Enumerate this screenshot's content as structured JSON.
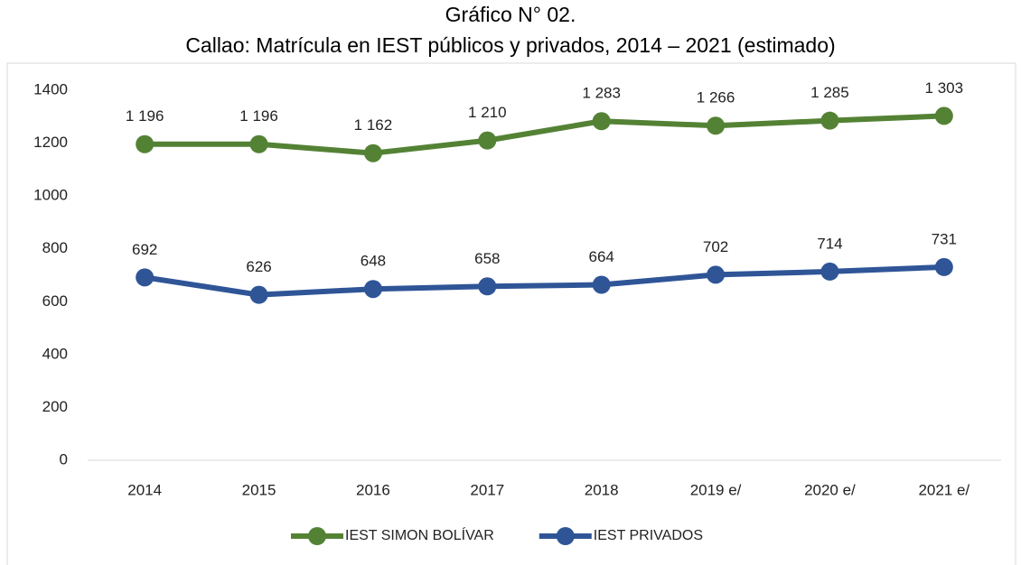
{
  "chart_data": {
    "type": "line",
    "title": "Gráfico N° 02.",
    "subtitle": "Callao: Matrícula en IEST públicos y privados, 2014 – 2021 (estimado)",
    "categories": [
      "2014",
      "2015",
      "2016",
      "2017",
      "2018",
      "2019 e/",
      "2020 e/",
      "2021 e/"
    ],
    "series": [
      {
        "name": "IEST SIMON BOLÍVAR",
        "color": "#548235",
        "values": [
          1196,
          1196,
          1162,
          1210,
          1283,
          1266,
          1285,
          1303
        ],
        "value_labels": [
          "1 196",
          "1 196",
          "1 162",
          "1 210",
          "1 283",
          "1 266",
          "1 285",
          "1 303"
        ]
      },
      {
        "name": "IEST PRIVADOS",
        "color": "#2f5597",
        "values": [
          692,
          626,
          648,
          658,
          664,
          702,
          714,
          731
        ]
      }
    ],
    "ylim": [
      0,
      1400
    ],
    "yticks": [
      0,
      200,
      400,
      600,
      800,
      1000,
      1200,
      1400
    ],
    "grid": false,
    "legend": "bottom"
  }
}
